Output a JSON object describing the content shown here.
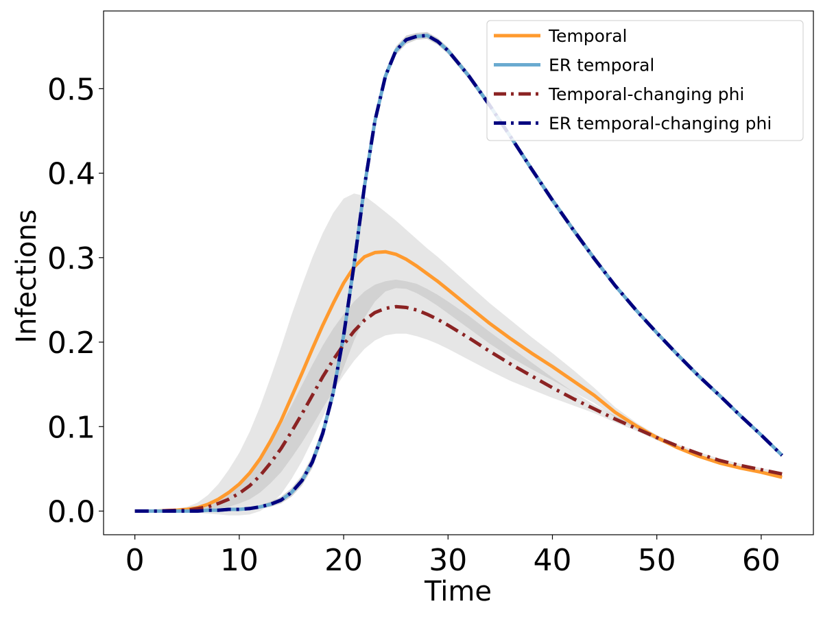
{
  "chart_data": {
    "type": "line",
    "title": "",
    "xlabel": "Time",
    "ylabel": "Infections",
    "xlim": [
      -3,
      65
    ],
    "ylim": [
      -0.028,
      0.592
    ],
    "x_ticks": [
      0,
      10,
      20,
      30,
      40,
      50,
      60
    ],
    "y_ticks": [
      0.0,
      0.1,
      0.2,
      0.3,
      0.4,
      0.5
    ],
    "y_tick_labels": [
      "0.0",
      "0.1",
      "0.2",
      "0.3",
      "0.4",
      "0.5"
    ],
    "grid": false,
    "legend_position": "top-right",
    "x": [
      0,
      2,
      4,
      5,
      6,
      7,
      8,
      9,
      10,
      11,
      12,
      13,
      14,
      15,
      16,
      17,
      18,
      19,
      20,
      21,
      22,
      23,
      24,
      25,
      26,
      27,
      28,
      29,
      30,
      32,
      34,
      36,
      38,
      40,
      42,
      44,
      46,
      48,
      50,
      52,
      54,
      56,
      58,
      60,
      62
    ],
    "series": [
      {
        "name": "Temporal",
        "color": "#ff9a2e",
        "dash": "solid",
        "values": [
          0.0,
          0.0,
          0.001,
          0.002,
          0.004,
          0.008,
          0.014,
          0.022,
          0.032,
          0.045,
          0.062,
          0.083,
          0.107,
          0.135,
          0.163,
          0.192,
          0.22,
          0.246,
          0.27,
          0.289,
          0.301,
          0.306,
          0.307,
          0.304,
          0.298,
          0.29,
          0.281,
          0.272,
          0.262,
          0.242,
          0.222,
          0.204,
          0.187,
          0.171,
          0.154,
          0.137,
          0.117,
          0.101,
          0.087,
          0.075,
          0.065,
          0.057,
          0.051,
          0.046,
          0.04
        ],
        "band": [
          0.0,
          0.0,
          0.002,
          0.003,
          0.006,
          0.011,
          0.018,
          0.027,
          0.037,
          0.049,
          0.062,
          0.075,
          0.087,
          0.097,
          0.104,
          0.108,
          0.109,
          0.107,
          0.1,
          0.087,
          0.072,
          0.058,
          0.047,
          0.04,
          0.035,
          0.032,
          0.03,
          0.029,
          0.028,
          0.026,
          0.024,
          0.022,
          0.019,
          0.016,
          0.013,
          0.009,
          0.006,
          0.004,
          0.003,
          0.002,
          0.002,
          0.002,
          0.002,
          0.002,
          0.002
        ]
      },
      {
        "name": "ER temporal",
        "color": "#6aaad0",
        "dash": "solid",
        "values": [
          0.0,
          0.0,
          0.0,
          0.0,
          0.0,
          0.001,
          0.001,
          0.002,
          0.002,
          0.003,
          0.005,
          0.008,
          0.013,
          0.022,
          0.036,
          0.058,
          0.092,
          0.14,
          0.208,
          0.292,
          0.385,
          0.462,
          0.515,
          0.545,
          0.558,
          0.562,
          0.563,
          0.556,
          0.545,
          0.515,
          0.48,
          0.443,
          0.405,
          0.368,
          0.333,
          0.299,
          0.267,
          0.238,
          0.211,
          0.185,
          0.16,
          0.137,
          0.113,
          0.09,
          0.066
        ],
        "band": [
          0.0,
          0.0,
          0.0,
          0.0,
          0.0,
          0.0,
          0.001,
          0.001,
          0.001,
          0.002,
          0.002,
          0.003,
          0.004,
          0.005,
          0.006,
          0.007,
          0.008,
          0.009,
          0.009,
          0.009,
          0.008,
          0.007,
          0.006,
          0.005,
          0.005,
          0.004,
          0.004,
          0.004,
          0.004,
          0.004,
          0.004,
          0.004,
          0.004,
          0.004,
          0.004,
          0.004,
          0.003,
          0.003,
          0.003,
          0.003,
          0.003,
          0.003,
          0.002,
          0.002,
          0.002
        ]
      },
      {
        "name": "Temporal-changing phi",
        "color": "#8b2323",
        "dash": "dashdot",
        "values": [
          0.0,
          0.0,
          0.001,
          0.001,
          0.003,
          0.005,
          0.009,
          0.014,
          0.021,
          0.03,
          0.042,
          0.057,
          0.074,
          0.094,
          0.115,
          0.137,
          0.159,
          0.179,
          0.197,
          0.213,
          0.226,
          0.235,
          0.24,
          0.242,
          0.241,
          0.238,
          0.233,
          0.227,
          0.22,
          0.205,
          0.189,
          0.174,
          0.16,
          0.146,
          0.133,
          0.121,
          0.109,
          0.098,
          0.087,
          0.077,
          0.068,
          0.06,
          0.054,
          0.049,
          0.044
        ],
        "band": [
          0.0,
          0.0,
          0.001,
          0.001,
          0.002,
          0.004,
          0.006,
          0.009,
          0.012,
          0.016,
          0.02,
          0.024,
          0.028,
          0.031,
          0.034,
          0.036,
          0.037,
          0.037,
          0.036,
          0.035,
          0.034,
          0.033,
          0.032,
          0.032,
          0.031,
          0.031,
          0.03,
          0.029,
          0.028,
          0.026,
          0.023,
          0.02,
          0.016,
          0.012,
          0.008,
          0.005,
          0.004,
          0.003,
          0.003,
          0.002,
          0.002,
          0.002,
          0.002,
          0.002,
          0.002
        ]
      },
      {
        "name": "ER temporal-changing phi",
        "color": "#00007f",
        "dash": "dashdot",
        "values": [
          0.0,
          0.0,
          0.0,
          0.0,
          0.0,
          0.001,
          0.001,
          0.002,
          0.002,
          0.003,
          0.005,
          0.008,
          0.013,
          0.022,
          0.036,
          0.058,
          0.092,
          0.14,
          0.208,
          0.292,
          0.385,
          0.462,
          0.515,
          0.545,
          0.558,
          0.562,
          0.563,
          0.556,
          0.545,
          0.515,
          0.48,
          0.443,
          0.405,
          0.368,
          0.333,
          0.299,
          0.267,
          0.238,
          0.211,
          0.185,
          0.16,
          0.137,
          0.113,
          0.09,
          0.066
        ],
        "band": [
          0.0,
          0.0,
          0.0,
          0.0,
          0.0,
          0.0,
          0.001,
          0.001,
          0.001,
          0.002,
          0.002,
          0.003,
          0.004,
          0.005,
          0.006,
          0.007,
          0.008,
          0.009,
          0.009,
          0.009,
          0.008,
          0.007,
          0.006,
          0.005,
          0.005,
          0.004,
          0.004,
          0.004,
          0.004,
          0.004,
          0.004,
          0.004,
          0.004,
          0.004,
          0.004,
          0.004,
          0.003,
          0.003,
          0.003,
          0.003,
          0.003,
          0.003,
          0.002,
          0.002,
          0.002
        ]
      }
    ]
  }
}
